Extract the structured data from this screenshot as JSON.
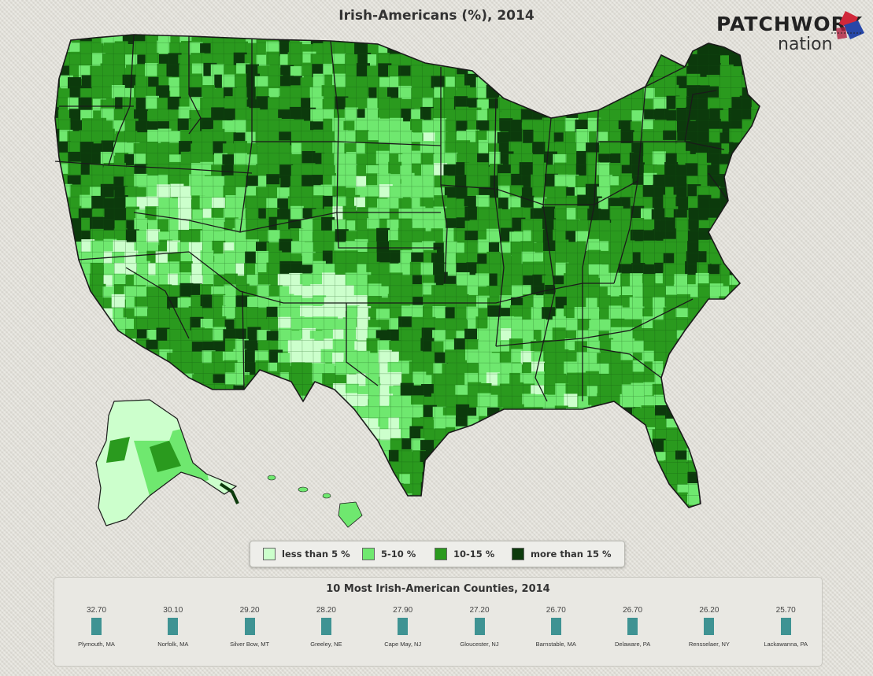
{
  "title": "Irish-Americans (%), 2014",
  "logo": {
    "line1": "PATCHWORK",
    "line2": "nation"
  },
  "colors": {
    "less_than_5": "#ccffcc",
    "5_10": "#6fe86f",
    "10_15": "#2a9a1e",
    "more_than_15": "#0c3a0c",
    "bar": "#3f9393",
    "border": "#1a1a1a"
  },
  "legend": [
    {
      "label": "less than 5 %",
      "color": "#ccffcc"
    },
    {
      "label": "5-10 %",
      "color": "#6fe86f"
    },
    {
      "label": "10-15 %",
      "color": "#2a9a1e"
    },
    {
      "label": "more than 15 %",
      "color": "#0c3a0c"
    }
  ],
  "top_counties": {
    "title": "10 Most Irish-American Counties, 2014",
    "items": [
      {
        "name": "Plymouth, MA",
        "value": "32.70"
      },
      {
        "name": "Norfolk, MA",
        "value": "30.10"
      },
      {
        "name": "Silver Bow, MT",
        "value": "29.20"
      },
      {
        "name": "Greeley, NE",
        "value": "28.20"
      },
      {
        "name": "Cape May, NJ",
        "value": "27.90"
      },
      {
        "name": "Gloucester, NJ",
        "value": "27.20"
      },
      {
        "name": "Barnstable, MA",
        "value": "26.70"
      },
      {
        "name": "Delaware, PA",
        "value": "26.70"
      },
      {
        "name": "Rensselaer, NY",
        "value": "26.20"
      },
      {
        "name": "Lackawanna, PA",
        "value": "25.70"
      }
    ]
  }
}
